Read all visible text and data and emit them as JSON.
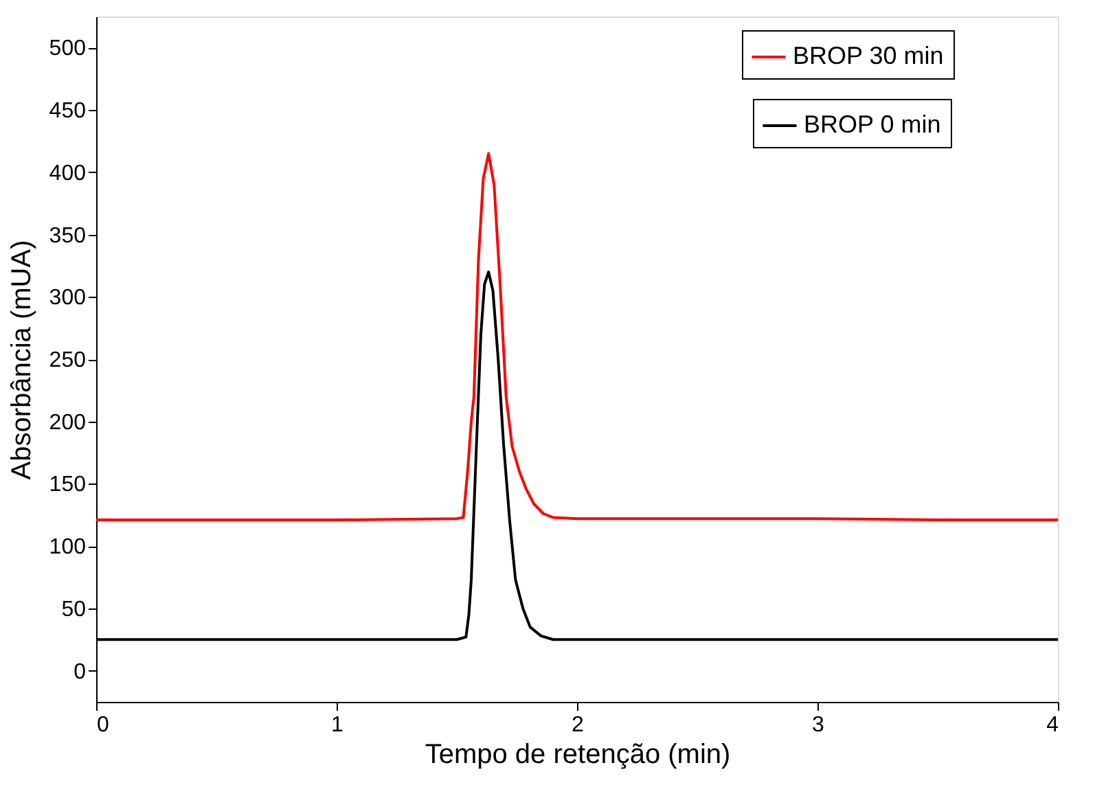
{
  "chart_data": {
    "type": "line",
    "xlabel": "Tempo de retenção (min)",
    "ylabel": "Absorbância (mUA)",
    "xlim": [
      0,
      4
    ],
    "xticks": [
      0,
      1,
      2,
      3,
      4
    ],
    "ylim": [
      -25,
      525
    ],
    "yticks": [
      0,
      50,
      100,
      150,
      200,
      250,
      300,
      350,
      400,
      450,
      500
    ],
    "grid": false,
    "legend": "top right",
    "line_style": "solid",
    "marker": "none",
    "series": [
      {
        "name": "BROP 30 min",
        "color": "#ff0000",
        "x": [
          0,
          0.5,
          1,
          1.5,
          1.527,
          1.545,
          1.56,
          1.571,
          1.59,
          1.61,
          1.632,
          1.655,
          1.68,
          1.705,
          1.73,
          1.76,
          1.788,
          1.82,
          1.86,
          1.9,
          2.0,
          2.5,
          3,
          3.5,
          4
        ],
        "values": [
          121,
          121,
          121,
          122,
          123,
          160,
          200,
          220,
          330,
          395,
          415,
          390,
          310,
          220,
          180,
          160,
          146,
          134,
          126,
          123,
          122,
          122,
          122,
          121,
          121
        ]
      },
      {
        "name": "BROP 0 min",
        "color": "#000000",
        "x": [
          0,
          0.5,
          1,
          1.5,
          1.538,
          1.55,
          1.56,
          1.582,
          1.6,
          1.615,
          1.632,
          1.65,
          1.672,
          1.694,
          1.72,
          1.744,
          1.775,
          1.805,
          1.85,
          1.9,
          2.0,
          2.5,
          3,
          3.5,
          4
        ],
        "values": [
          25,
          25,
          25,
          25,
          27,
          45,
          73,
          183,
          270,
          310,
          320,
          305,
          250,
          183,
          120,
          73,
          50,
          35,
          28,
          25,
          25,
          25,
          25,
          25,
          25
        ]
      }
    ]
  }
}
